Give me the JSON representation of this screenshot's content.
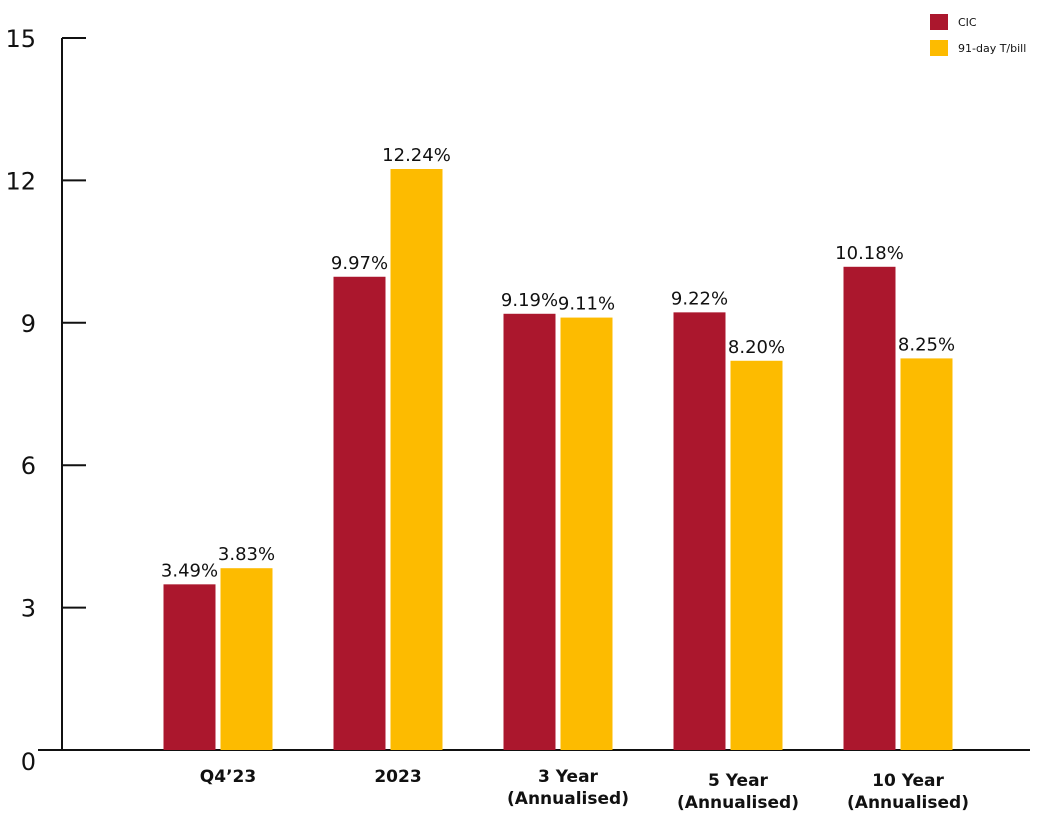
{
  "chart_data": {
    "type": "bar",
    "categories": [
      [
        "Q4’23"
      ],
      [
        "2023"
      ],
      [
        "3 Year",
        "(Annualised)"
      ],
      [
        "5 Year",
        "(Annualised)"
      ],
      [
        "10 Year",
        "(Annualised)"
      ]
    ],
    "series": [
      {
        "name": "CIC",
        "color": "#AB172D",
        "values": [
          3.49,
          9.97,
          9.19,
          9.22,
          10.18
        ],
        "labels": [
          "3.49%",
          "9.97%",
          "9.19%",
          "9.22%",
          "10.18%"
        ]
      },
      {
        "name": "91-day T/bill",
        "color": "#FDBB00",
        "values": [
          3.83,
          12.24,
          9.11,
          8.2,
          8.25
        ],
        "labels": [
          "3.83%",
          "12.24%",
          "9.11%",
          "8.20%",
          "8.25%"
        ]
      }
    ],
    "ylim": [
      0,
      15
    ],
    "yticks": [
      0,
      3,
      6,
      9,
      12,
      15
    ],
    "title": "",
    "xlabel": "",
    "ylabel": "",
    "legend_position": "top-right",
    "grid": false
  }
}
